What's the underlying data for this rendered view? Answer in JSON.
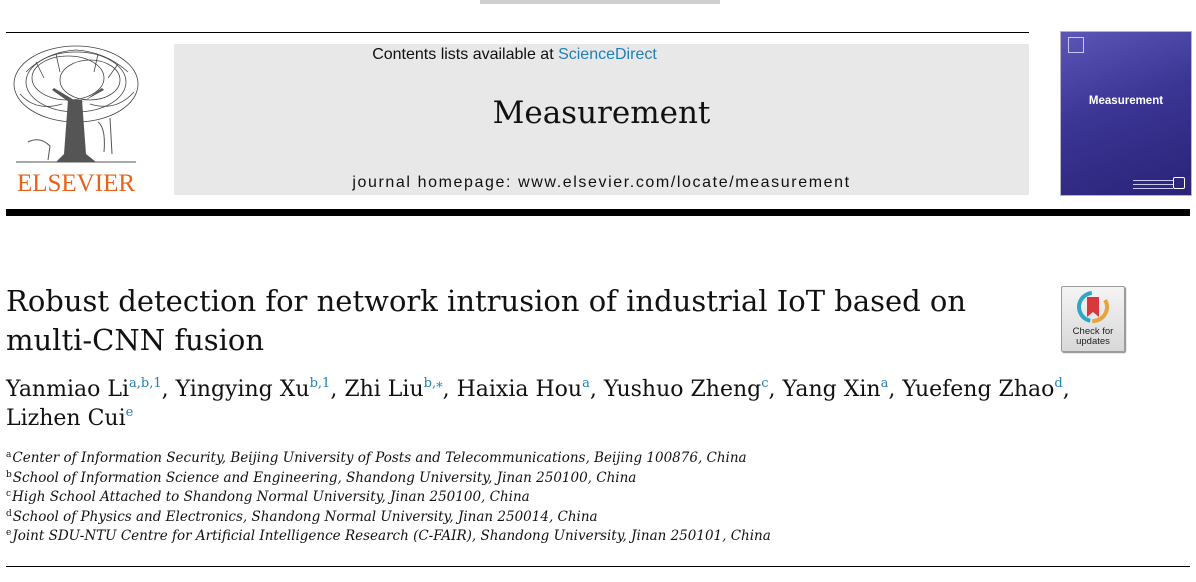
{
  "header": {
    "publisher_name": "ELSEVIER",
    "contents_prefix": "Contents lists available at ",
    "contents_link": "ScienceDirect",
    "journal_title": "Measurement",
    "homepage": "journal homepage: www.elsevier.com/locate/measurement",
    "cover_title": "Measurement",
    "link_color": "#1f7fb8",
    "brand_color": "#e5631b"
  },
  "article": {
    "title": "Robust detection for network intrusion of industrial IoT based on multi-CNN fusion",
    "check_updates_line1": "Check for",
    "check_updates_line2": "updates",
    "authors": [
      {
        "name": "Yanmiao Li",
        "sup": "a,b,1",
        "sep": ", "
      },
      {
        "name": "Yingying Xu",
        "sup": "b,1",
        "sep": ", "
      },
      {
        "name": "Zhi Liu",
        "sup": "b,⁎",
        "sep": ", "
      },
      {
        "name": "Haixia Hou",
        "sup": "a",
        "sep": ", "
      },
      {
        "name": "Yushuo Zheng",
        "sup": "c",
        "sep": ", "
      },
      {
        "name": "Yang Xin",
        "sup": "a",
        "sep": ", "
      },
      {
        "name": "Yuefeng Zhao",
        "sup": "d",
        "sep": ", "
      },
      {
        "name": "Lizhen Cui",
        "sup": "e",
        "sep": ""
      }
    ],
    "affiliations": [
      {
        "key": "a",
        "text": "Center of Information Security, Beijing University of Posts and Telecommunications, Beijing 100876, China"
      },
      {
        "key": "b",
        "text": "School of Information Science and Engineering, Shandong University, Jinan 250100, China"
      },
      {
        "key": "c",
        "text": "High School Attached to Shandong Normal University, Jinan 250100, China"
      },
      {
        "key": "d",
        "text": "School of Physics and Electronics, Shandong Normal University, Jinan 250014, China"
      },
      {
        "key": "e",
        "text": "Joint SDU-NTU Centre for Artificial Intelligence Research (C-FAIR), Shandong University, Jinan 250101, China"
      }
    ]
  }
}
